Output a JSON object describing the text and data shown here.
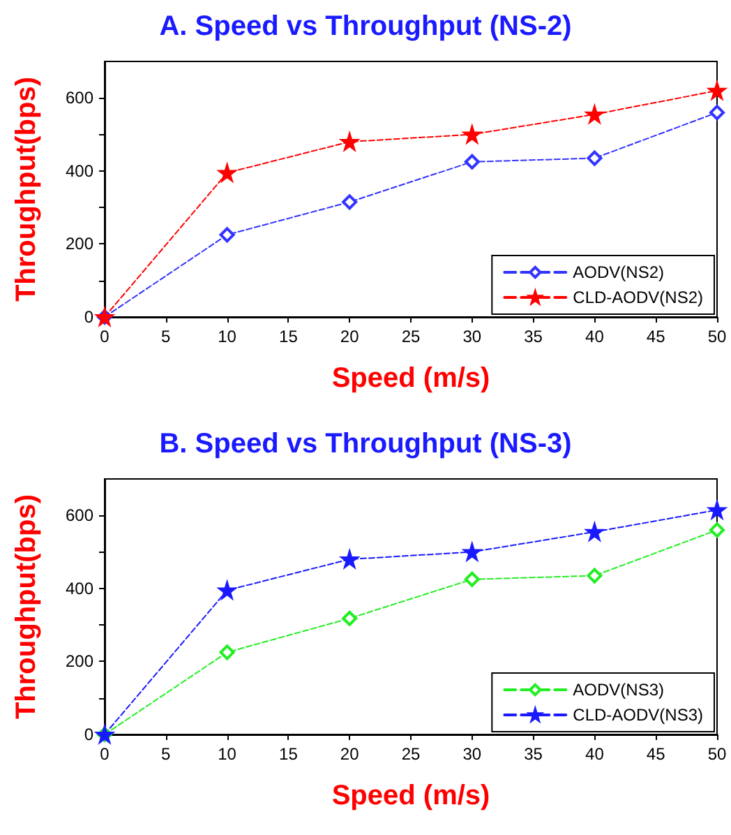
{
  "chart_data": [
    {
      "type": "line",
      "title": "A. Speed vs Throughput (NS-2)",
      "xlabel": "Speed (m/s)",
      "ylabel": "Throughput(bps)",
      "x": [
        0,
        10,
        20,
        30,
        40,
        50
      ],
      "series": [
        {
          "name": "AODV(NS2)",
          "color": "#3333ff",
          "marker": "diamond",
          "values": [
            0,
            225,
            315,
            425,
            435,
            560
          ]
        },
        {
          "name": "CLD-AODV(NS2)",
          "color": "#ff0000",
          "marker": "star",
          "values": [
            0,
            395,
            480,
            500,
            555,
            620
          ]
        }
      ],
      "xlim": [
        0,
        50
      ],
      "xticks": [
        0,
        5,
        10,
        15,
        20,
        25,
        30,
        35,
        40,
        45,
        50
      ],
      "ylim": [
        0,
        700
      ],
      "yticks": [
        0,
        {
          "value": 100,
          "label": null
        },
        200,
        {
          "value": 300,
          "label": null
        },
        400,
        {
          "value": 500,
          "label": null
        },
        600
      ],
      "line_style": "dashed",
      "legend": "bottom right",
      "grid": false
    },
    {
      "type": "line",
      "title": "B. Speed vs Throughput (NS-3)",
      "xlabel": "Speed (m/s)",
      "ylabel": "Throughput(bps)",
      "x": [
        0,
        10,
        20,
        30,
        40,
        50
      ],
      "series": [
        {
          "name": "AODV(NS3)",
          "color": "#22ee22",
          "marker": "diamond",
          "values": [
            0,
            225,
            318,
            425,
            435,
            560
          ]
        },
        {
          "name": "CLD-AODV(NS3)",
          "color": "#1a1aff",
          "marker": "star",
          "values": [
            0,
            395,
            480,
            500,
            555,
            615
          ]
        }
      ],
      "xlim": [
        0,
        50
      ],
      "xticks": [
        0,
        5,
        10,
        15,
        20,
        25,
        30,
        35,
        40,
        45,
        50
      ],
      "ylim": [
        0,
        700
      ],
      "yticks": [
        0,
        {
          "value": 100,
          "label": null
        },
        200,
        {
          "value": 300,
          "label": null
        },
        400,
        {
          "value": 500,
          "label": null
        },
        600
      ],
      "line_style": "dashed",
      "legend": "bottom right",
      "grid": false
    }
  ]
}
